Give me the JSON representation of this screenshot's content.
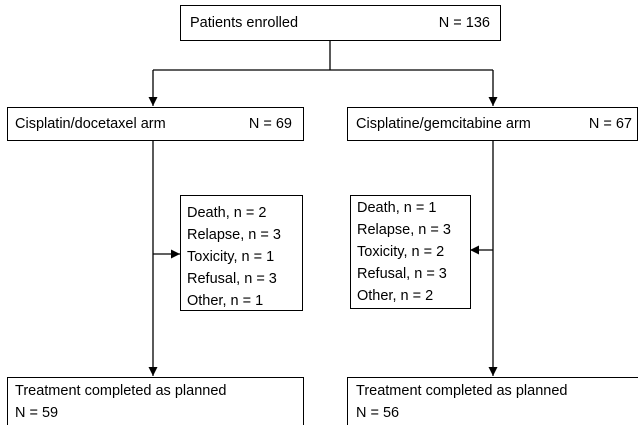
{
  "nodes": [
    {
      "label": "Patients enrolled",
      "count": "N = 136"
    },
    {
      "label": "Cisplatin/docetaxel arm",
      "count": "N = 69"
    },
    {
      "label": "Cisplatine/gemcitabine arm",
      "count": "N = 67"
    },
    {
      "lines": [
        "Death, n = 2",
        "Relapse, n = 3",
        "Toxicity, n = 1",
        "Refusal, n = 3",
        "Other, n = 1"
      ]
    },
    {
      "lines": [
        "Death, n = 1",
        "Relapse, n = 3",
        "Toxicity, n = 2",
        "Refusal, n = 3",
        "Other, n = 2"
      ]
    },
    {
      "label": "Treatment completed as planned",
      "count": "N = 59"
    },
    {
      "label": "Treatment completed as planned",
      "count": "N = 56"
    }
  ]
}
